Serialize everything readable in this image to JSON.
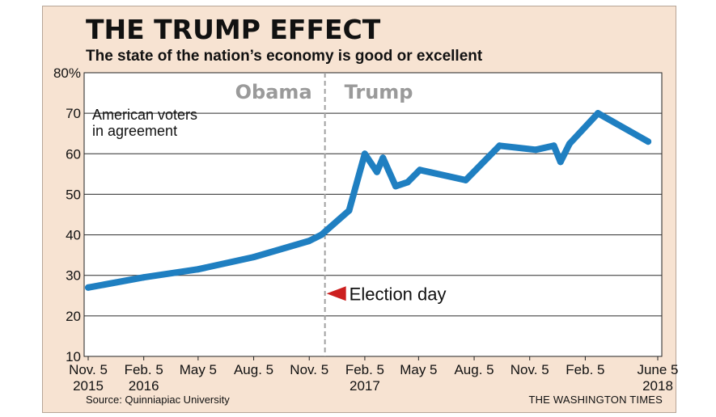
{
  "header": {
    "title": "THE TRUMP EFFECT",
    "subtitle": "The state of the nation’s economy is good or excellent"
  },
  "footer": {
    "source": "Source: Quinniapiac University",
    "credit": "THE WASHINGTON TIMES"
  },
  "chart_data": {
    "type": "line",
    "title": "THE TRUMP EFFECT",
    "subtitle": "The state of the nation’s economy is good or excellent",
    "ylim": [
      10,
      80
    ],
    "y_ticks": [
      "10",
      "20",
      "30",
      "40",
      "50",
      "60",
      "70",
      "80%"
    ],
    "x_ticks": [
      {
        "line1": "Nov. 5",
        "line2": "2015"
      },
      {
        "line1": "Feb. 5",
        "line2": "2016"
      },
      {
        "line1": "May 5",
        "line2": ""
      },
      {
        "line1": "Aug. 5",
        "line2": ""
      },
      {
        "line1": "Nov. 5",
        "line2": ""
      },
      {
        "line1": "Feb. 5",
        "line2": "2017"
      },
      {
        "line1": "May 5",
        "line2": ""
      },
      {
        "line1": "Aug. 5",
        "line2": ""
      },
      {
        "line1": "Nov. 5",
        "line2": ""
      },
      {
        "line1": "Feb. 5",
        "line2": ""
      },
      {
        "line1": "June 5",
        "line2": "2018"
      }
    ],
    "x_tick_dates": [
      "2015-11-05",
      "2016-02-05",
      "2016-05-05",
      "2016-08-05",
      "2016-11-05",
      "2017-02-05",
      "2017-05-05",
      "2017-08-05",
      "2017-11-05",
      "2018-02-05",
      "2018-06-05"
    ],
    "grid": true,
    "series": [
      {
        "name": "American voters in agreement",
        "color": "#1f7fc1",
        "points": [
          {
            "x": "2015-11-05",
            "y": 27
          },
          {
            "x": "2016-02-05",
            "y": 29.5
          },
          {
            "x": "2016-05-05",
            "y": 31.5
          },
          {
            "x": "2016-08-05",
            "y": 34.5
          },
          {
            "x": "2016-11-05",
            "y": 38.5
          },
          {
            "x": "2016-11-25",
            "y": 40
          },
          {
            "x": "2017-01-10",
            "y": 46
          },
          {
            "x": "2017-02-05",
            "y": 60
          },
          {
            "x": "2017-02-25",
            "y": 55.5
          },
          {
            "x": "2017-03-07",
            "y": 59
          },
          {
            "x": "2017-03-28",
            "y": 52
          },
          {
            "x": "2017-04-17",
            "y": 53
          },
          {
            "x": "2017-05-07",
            "y": 56
          },
          {
            "x": "2017-07-22",
            "y": 53.5
          },
          {
            "x": "2017-09-16",
            "y": 62
          },
          {
            "x": "2017-11-15",
            "y": 61
          },
          {
            "x": "2017-12-15",
            "y": 62
          },
          {
            "x": "2017-12-26",
            "y": 58
          },
          {
            "x": "2018-01-10",
            "y": 62.5
          },
          {
            "x": "2018-02-26",
            "y": 70
          },
          {
            "x": "2018-05-20",
            "y": 63
          }
        ]
      }
    ],
    "annotations": {
      "series_label_line1": "American voters",
      "series_label_line2": "in agreement",
      "period_before": "Obama",
      "period_after": "Trump",
      "divider_date": "2016-12-01",
      "event_label": "Election day",
      "event_color": "#cc1f1f",
      "period_label_color": "#9a9a9a"
    },
    "colors": {
      "frame_background": "#f7e3d2",
      "plot_background": "#ffffff",
      "line": "#1f7fc1"
    }
  }
}
